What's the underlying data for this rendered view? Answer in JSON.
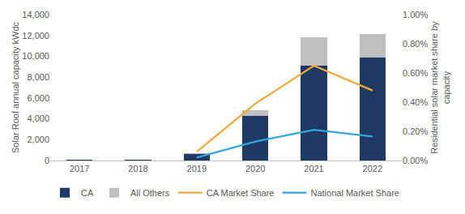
{
  "chart_data": {
    "type": "bar",
    "stacked": true,
    "grid": false,
    "legend": "bottom",
    "categories": [
      "2017",
      "2018",
      "2019",
      "2020",
      "2021",
      "2022"
    ],
    "y_label": "Solar Roof annual capacity kWdc",
    "y2_label": "Residential solar market share by capacity",
    "ylim": [
      0,
      14000
    ],
    "yticks": [
      0,
      {
        "value": 2000,
        "label": "2,000"
      },
      {
        "value": 4000,
        "label": "4,000"
      },
      {
        "value": 6000,
        "label": "6,000"
      },
      {
        "value": 8000,
        "label": "8,000"
      },
      {
        "value": 10000,
        "label": "10,000"
      },
      {
        "value": 12000,
        "label": "12,000"
      },
      {
        "value": 14000,
        "label": "14,000"
      }
    ],
    "y2lim": [
      0,
      1
    ],
    "y2ticks": [
      {
        "value": 0,
        "label": "0.00%"
      },
      {
        "value": 0.2,
        "label": "0.20%"
      },
      {
        "value": 0.4,
        "label": "0.40%"
      },
      {
        "value": 0.6,
        "label": "0.60%"
      },
      {
        "value": 0.8,
        "label": "0.80%"
      },
      {
        "value": 1,
        "label": "1.00%"
      }
    ],
    "series": [
      {
        "name": "CA",
        "type": "bar",
        "color": "#203864",
        "values": [
          50,
          50,
          650,
          4300,
          9100,
          9850
        ]
      },
      {
        "name": "All Others",
        "type": "bar",
        "color": "#bfbfbf",
        "values": [
          20,
          20,
          80,
          500,
          2700,
          2300
        ]
      },
      {
        "name": "CA Market Share",
        "type": "line",
        "axis": "y2",
        "color": "#f2a93b",
        "values": [
          null,
          null,
          0.06,
          0.39,
          0.65,
          0.48
        ]
      },
      {
        "name": "National Market Share",
        "type": "line",
        "axis": "y2",
        "color": "#2ea8dc",
        "values": [
          null,
          null,
          0.02,
          0.13,
          0.21,
          0.165
        ]
      }
    ]
  }
}
